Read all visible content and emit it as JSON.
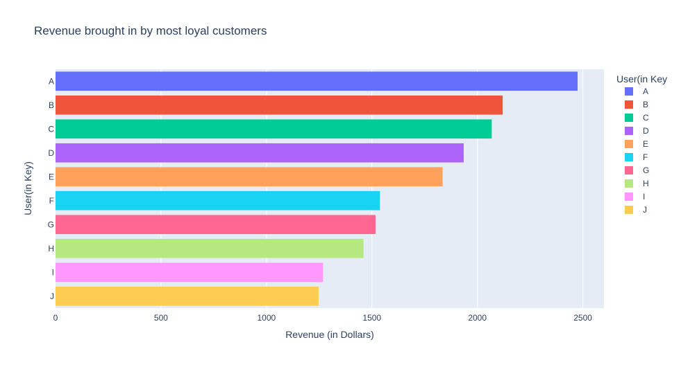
{
  "chart_data": {
    "type": "bar",
    "orientation": "horizontal",
    "title": "Revenue brought in by most loyal customers",
    "xlabel": "Revenue (in Dollars)",
    "ylabel": "User(in Key)",
    "xlim": [
      0,
      2600
    ],
    "x_ticks": [
      0,
      500,
      1000,
      1500,
      2000,
      2500
    ],
    "x_tick_labels": [
      "0",
      "500",
      "1000",
      "1500",
      "2000",
      "2500"
    ],
    "grid": true,
    "legend_title": "User(in Key",
    "legend_position": "right",
    "categories": [
      "A",
      "B",
      "C",
      "D",
      "E",
      "F",
      "G",
      "H",
      "I",
      "J"
    ],
    "values": [
      2475,
      2120,
      2068,
      1935,
      1835,
      1538,
      1517,
      1460,
      1268,
      1247
    ],
    "colors": [
      "#636efa",
      "#ef553b",
      "#00cc96",
      "#ab63fa",
      "#ffa15a",
      "#19d3f3",
      "#ff6692",
      "#b6e880",
      "#ff97ff",
      "#fecb52"
    ]
  }
}
